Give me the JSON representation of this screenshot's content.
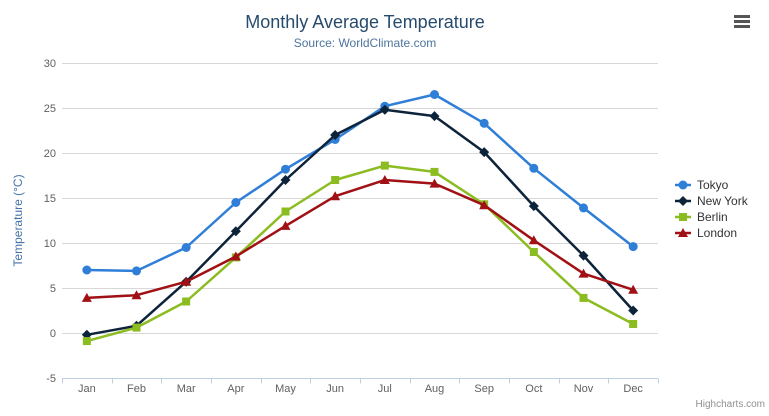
{
  "chart_data": {
    "type": "line",
    "title": "Monthly Average Temperature",
    "subtitle": "Source: WorldClimate.com",
    "xlabel": "",
    "ylabel": "Temperature (°C)",
    "categories": [
      "Jan",
      "Feb",
      "Mar",
      "Apr",
      "May",
      "Jun",
      "Jul",
      "Aug",
      "Sep",
      "Oct",
      "Nov",
      "Dec"
    ],
    "ylim": [
      -5,
      30
    ],
    "yticks": [
      -5,
      0,
      5,
      10,
      15,
      20,
      25,
      30
    ],
    "grid": "horizontal-only",
    "legend_position": "right",
    "series": [
      {
        "name": "Tokyo",
        "color": "#2f7ed8",
        "marker": "circle",
        "values": [
          7.0,
          6.9,
          9.5,
          14.5,
          18.2,
          21.5,
          25.2,
          26.5,
          23.3,
          18.3,
          13.9,
          9.6
        ]
      },
      {
        "name": "New York",
        "color": "#0d233a",
        "marker": "diamond",
        "values": [
          -0.2,
          0.8,
          5.7,
          11.3,
          17.0,
          22.0,
          24.8,
          24.1,
          20.1,
          14.1,
          8.6,
          2.5
        ]
      },
      {
        "name": "Berlin",
        "color": "#8bbc21",
        "marker": "square",
        "values": [
          -0.9,
          0.6,
          3.5,
          8.4,
          13.5,
          17.0,
          18.6,
          17.9,
          14.3,
          9.0,
          3.9,
          1.0
        ]
      },
      {
        "name": "London",
        "color": "#a01014",
        "marker": "triangle",
        "values": [
          3.9,
          4.2,
          5.7,
          8.5,
          11.9,
          15.2,
          17.0,
          16.6,
          14.2,
          10.3,
          6.6,
          4.8
        ]
      }
    ]
  },
  "colors": {
    "background": "#ffffff",
    "grid_line": "#d8d8d8",
    "axis_line": "#c0d0e0",
    "axis_label": "#606060",
    "title_text": "#274b6d",
    "subtitle_text": "#4d759e",
    "y_axis_title": "#4572a7",
    "legend_text": "#333333",
    "credit_text": "#909090",
    "menu_icon": "#555555"
  },
  "icons": {
    "context_menu": "hamburger-icon"
  },
  "credits": {
    "text": "Highcharts.com"
  }
}
